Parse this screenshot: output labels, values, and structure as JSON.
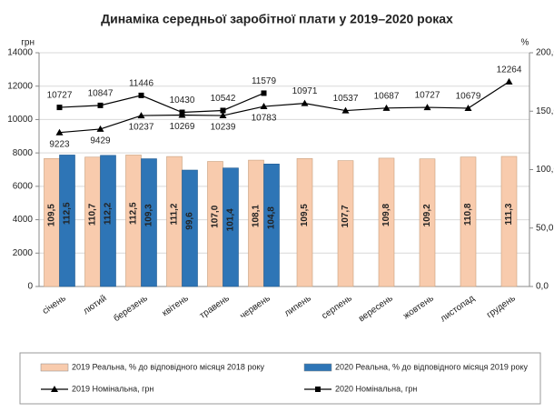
{
  "chart_data": {
    "type": "bar",
    "title": "Динаміка середньої заробітної плати у 2019–2020 роках",
    "y_label": "грн",
    "y2_label": "%",
    "categories": [
      "січень",
      "лютий",
      "березень",
      "квітень",
      "травень",
      "червень",
      "липень",
      "серпень",
      "вересень",
      "жовтень",
      "листопад",
      "грудень"
    ],
    "ylim": [
      0,
      14000
    ],
    "yticks": [
      0,
      2000,
      4000,
      6000,
      8000,
      10000,
      12000,
      14000
    ],
    "y2lim": [
      0,
      200
    ],
    "y2ticks": [
      {
        "value": 0,
        "label": "0,0"
      },
      {
        "value": 50,
        "label": "50,0"
      },
      {
        "value": 100,
        "label": "100,0"
      },
      {
        "value": 150,
        "label": "150,0"
      },
      {
        "value": 200,
        "label": "200,0"
      }
    ],
    "grid": true,
    "legend": "bottom",
    "series": [
      {
        "name": "2019 Реальна, % до відповідного місяця 2018 року",
        "type": "bar",
        "axis": "y2",
        "color": "#f8cbad",
        "values": [
          109.5,
          110.7,
          112.5,
          111.2,
          107.0,
          108.1,
          109.5,
          107.7,
          109.8,
          109.2,
          110.8,
          111.3
        ],
        "value_labels": [
          "109,5",
          "110,7",
          "112,5",
          "111,2",
          "107,0",
          "108,1",
          "109,5",
          "107,7",
          "109,8",
          "109,2",
          "110,8",
          "111,3"
        ]
      },
      {
        "name": "2020 Реальна, % до відповідного місяця 2019 року",
        "type": "bar",
        "axis": "y2",
        "color": "#2e75b6",
        "values": [
          112.5,
          112.2,
          109.3,
          99.6,
          101.4,
          104.8,
          null,
          null,
          null,
          null,
          null,
          null
        ],
        "value_labels": [
          "112,5",
          "112,2",
          "109,3",
          "99,6",
          "101,4",
          "104,8",
          null,
          null,
          null,
          null,
          null,
          null
        ]
      },
      {
        "name": "2019 Номінальна, грн",
        "type": "line",
        "marker": "triangle",
        "color": "#000000",
        "values": [
          9223,
          9429,
          10237,
          10269,
          10239,
          10783,
          10971,
          10537,
          10687,
          10727,
          10679,
          12264
        ]
      },
      {
        "name": "2020 Номінальна, грн",
        "type": "line",
        "marker": "square",
        "color": "#000000",
        "values": [
          10727,
          10847,
          11446,
          10430,
          10542,
          11579,
          null,
          null,
          null,
          null,
          null,
          null
        ]
      }
    ]
  }
}
